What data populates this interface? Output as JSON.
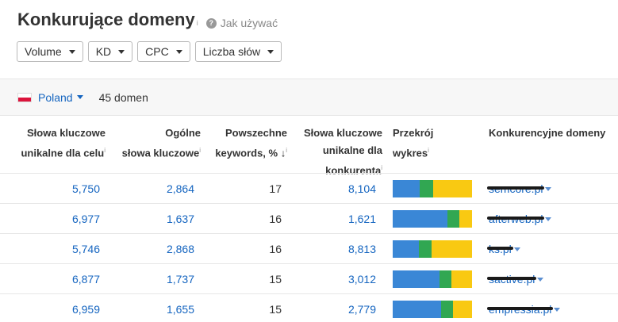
{
  "title": "Konkurujące domeny",
  "title_info": "i",
  "help": {
    "icon": "question-icon",
    "text": "Jak używać"
  },
  "filters": [
    {
      "label": "Volume"
    },
    {
      "label": "KD"
    },
    {
      "label": "CPC"
    },
    {
      "label": "Liczba słów"
    }
  ],
  "country": {
    "name": "Poland",
    "count": "45 domen"
  },
  "columns": {
    "col1_l1": "Słowa kluczowe",
    "col1_l2": "unikalne dla celu",
    "col2_l1": "Ogólne",
    "col2_l2": "słowa kluczowe",
    "col3_l1": "Powszechne",
    "col3_l2": "keywords, %",
    "col4_l1": "Słowa kluczowe",
    "col4_l2": "unikalne dla",
    "col4_l3": "konkurenta",
    "col5_l1": "Przekrój",
    "col5_l2": "wykres",
    "col6": "Konkurencyjne domeny",
    "info": "i",
    "sort_arrow": "↓"
  },
  "colors": {
    "blue": "#3a87d6",
    "green": "#31a752",
    "yellow": "#f9c912",
    "link": "#1565c0"
  },
  "rows": [
    {
      "unique_target": "5,750",
      "total": "2,864",
      "common_pct": "17",
      "unique_comp": "8,104",
      "bar": [
        0.34,
        0.17,
        0.49
      ],
      "domain": "semcore.pl"
    },
    {
      "unique_target": "6,977",
      "total": "1,637",
      "common_pct": "16",
      "unique_comp": "1,621",
      "bar": [
        0.69,
        0.15,
        0.16
      ],
      "domain": "afterweb.pl"
    },
    {
      "unique_target": "5,746",
      "total": "2,868",
      "common_pct": "16",
      "unique_comp": "8,813",
      "bar": [
        0.33,
        0.16,
        0.51
      ],
      "domain": "ks.pl"
    },
    {
      "unique_target": "6,877",
      "total": "1,737",
      "common_pct": "15",
      "unique_comp": "3,012",
      "bar": [
        0.59,
        0.15,
        0.26
      ],
      "domain": "sactive.pl"
    },
    {
      "unique_target": "6,959",
      "total": "1,655",
      "common_pct": "15",
      "unique_comp": "2,779",
      "bar": [
        0.61,
        0.15,
        0.24
      ],
      "domain": "empressia.pl"
    }
  ]
}
